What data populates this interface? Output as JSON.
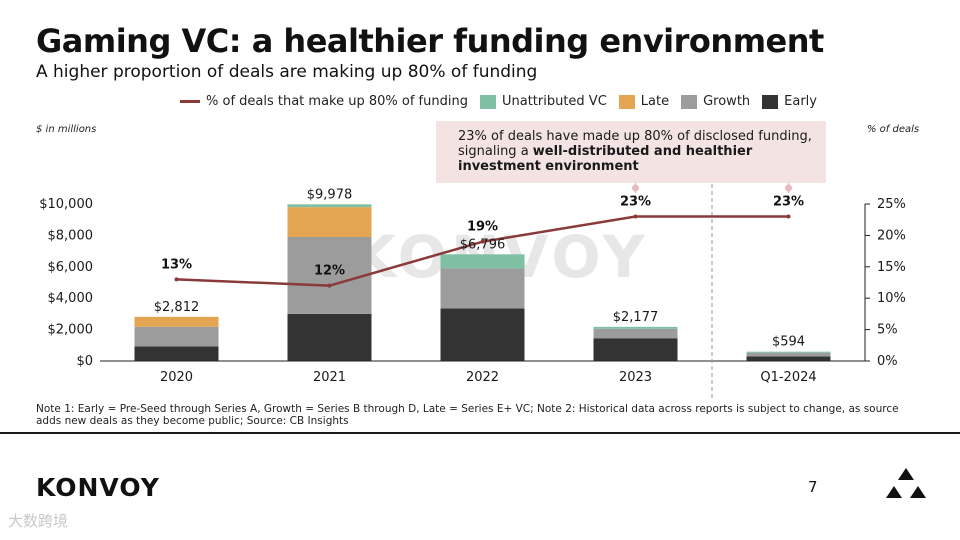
{
  "title": "Gaming VC: a healthier funding environment",
  "subtitle": "A higher proportion of deals are making up 80% of funding",
  "legend": {
    "line": "% of deals that make up 80% of funding",
    "unattributed": "Unattributed VC",
    "late": "Late",
    "growth": "Growth",
    "early": "Early"
  },
  "left_axis_unit": "$ in millions",
  "right_axis_unit": "% of deals",
  "callout": {
    "text_start": "23% of deals have made up 80% of disclosed funding, signaling a ",
    "text_bold": "well-distributed and healthier investment environment"
  },
  "watermark": "KONVOY",
  "note": "Note 1: Early = Pre-Seed through Series A, Growth = Series B through D, Late = Series E+ VC; Note 2: Historical data across reports is subject to change, as source adds new deals as they become public; Source: CB Insights",
  "footer": {
    "brand": "KONVOY",
    "page_number": "7",
    "bottom_watermark": "大数跨境"
  },
  "colors": {
    "early": "#333333",
    "growth": "#9c9c9c",
    "late": "#e3a552",
    "unattributed": "#7fbfa3",
    "line": "#8b3a3a",
    "callout_bg": "#f4e3e3"
  },
  "chart_data": {
    "type": "bar",
    "stacked": true,
    "categories": [
      "2020",
      "2021",
      "2022",
      "2023",
      "Q1-2024"
    ],
    "series": [
      {
        "name": "Early",
        "values": [
          930,
          3000,
          3350,
          1450,
          290
        ]
      },
      {
        "name": "Growth",
        "values": [
          1250,
          4900,
          2550,
          600,
          240
        ]
      },
      {
        "name": "Late",
        "values": [
          632,
          1900,
          0,
          0,
          0
        ]
      },
      {
        "name": "Unattributed VC",
        "values": [
          0,
          178,
          896,
          127,
          64
        ]
      }
    ],
    "totals": [
      2812,
      9978,
      6796,
      2177,
      594
    ],
    "total_labels": [
      "$2,812",
      "$9,978",
      "$6,796",
      "$2,177",
      "$594"
    ],
    "line": {
      "name": "% of deals that make up 80% of funding",
      "values": [
        13,
        12,
        19,
        23,
        23
      ],
      "labels": [
        "13%",
        "12%",
        "19%",
        "23%",
        "23%"
      ]
    },
    "y_left": {
      "min": 0,
      "max": 10000,
      "ticks": [
        0,
        2000,
        4000,
        6000,
        8000,
        10000
      ],
      "tick_labels": [
        "$0",
        "$2,000",
        "$4,000",
        "$6,000",
        "$8,000",
        "$10,000"
      ]
    },
    "y_right": {
      "min": 0,
      "max": 25,
      "ticks": [
        0,
        5,
        10,
        15,
        20,
        25
      ],
      "tick_labels": [
        "0%",
        "5%",
        "10%",
        "15%",
        "20%",
        "25%"
      ]
    },
    "grid": false,
    "legend_position": "top"
  }
}
